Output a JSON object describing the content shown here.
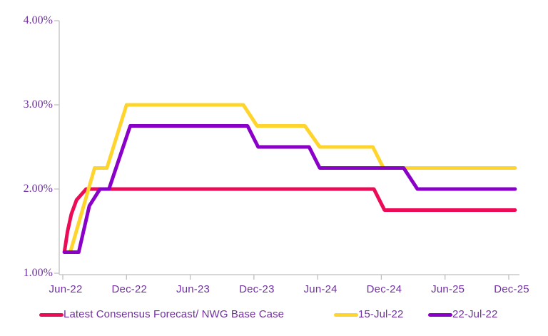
{
  "chart_data": {
    "type": "line",
    "title": "",
    "xlabel": "",
    "ylabel": "",
    "x_tick_labels": [
      "Jun-22",
      "Dec-22",
      "Jun-23",
      "Dec-23",
      "Jun-24",
      "Dec-24",
      "Jun-25",
      "Dec-25"
    ],
    "y_tick_labels": [
      "4.00%",
      "3.00%",
      "2.00%",
      "1.00%"
    ],
    "y_tick_values": [
      4.0,
      3.0,
      2.0,
      1.0
    ],
    "ylim": [
      1.0,
      4.0
    ],
    "x_unit": "months since Jun-22, 0 = Jun-22 tick, 42 = Dec-25 tick",
    "grid": false,
    "legend_position": "bottom",
    "series": [
      {
        "name": "Latest Consensus Forecast/ NWG Base Case",
        "color": "#EC0B56",
        "points": [
          [
            0.15,
            1.25
          ],
          [
            0.45,
            1.5
          ],
          [
            0.8,
            1.7
          ],
          [
            1.3,
            1.87
          ],
          [
            2.2,
            2.0
          ],
          [
            29.3,
            2.0
          ],
          [
            30.3,
            1.75
          ],
          [
            42.6,
            1.75
          ]
        ]
      },
      {
        "name": "15-Jul-22",
        "color": "#FFD52D",
        "points": [
          [
            0.6,
            1.25
          ],
          [
            0.75,
            1.27
          ],
          [
            3.0,
            2.25
          ],
          [
            4.15,
            2.25
          ],
          [
            6.0,
            3.0
          ],
          [
            17.0,
            3.0
          ],
          [
            18.3,
            2.75
          ],
          [
            22.8,
            2.75
          ],
          [
            24.2,
            2.5
          ],
          [
            29.2,
            2.5
          ],
          [
            30.2,
            2.25
          ],
          [
            42.6,
            2.25
          ]
        ]
      },
      {
        "name": "22-Jul-22",
        "color": "#8A00C8",
        "points": [
          [
            0.15,
            1.25
          ],
          [
            1.5,
            1.25
          ],
          [
            2.5,
            1.8
          ],
          [
            3.5,
            2.0
          ],
          [
            4.35,
            2.0
          ],
          [
            6.35,
            2.75
          ],
          [
            17.4,
            2.75
          ],
          [
            18.4,
            2.5
          ],
          [
            23.2,
            2.5
          ],
          [
            24.2,
            2.25
          ],
          [
            32.1,
            2.25
          ],
          [
            33.4,
            2.0
          ],
          [
            42.6,
            2.0
          ]
        ]
      }
    ],
    "legend_items": [
      {
        "label": "Latest Consensus Forecast/ NWG Base Case",
        "color": "#EC0B56"
      },
      {
        "label": "15-Jul-22",
        "color": "#FFD52D"
      },
      {
        "label": "22-Jul-22",
        "color": "#8A00C8"
      }
    ]
  },
  "style": {
    "axis_color": "#BFBFBF",
    "tick_label_color": "#7030A0",
    "legend_text_color": "#7030A0",
    "line_width": 5
  }
}
